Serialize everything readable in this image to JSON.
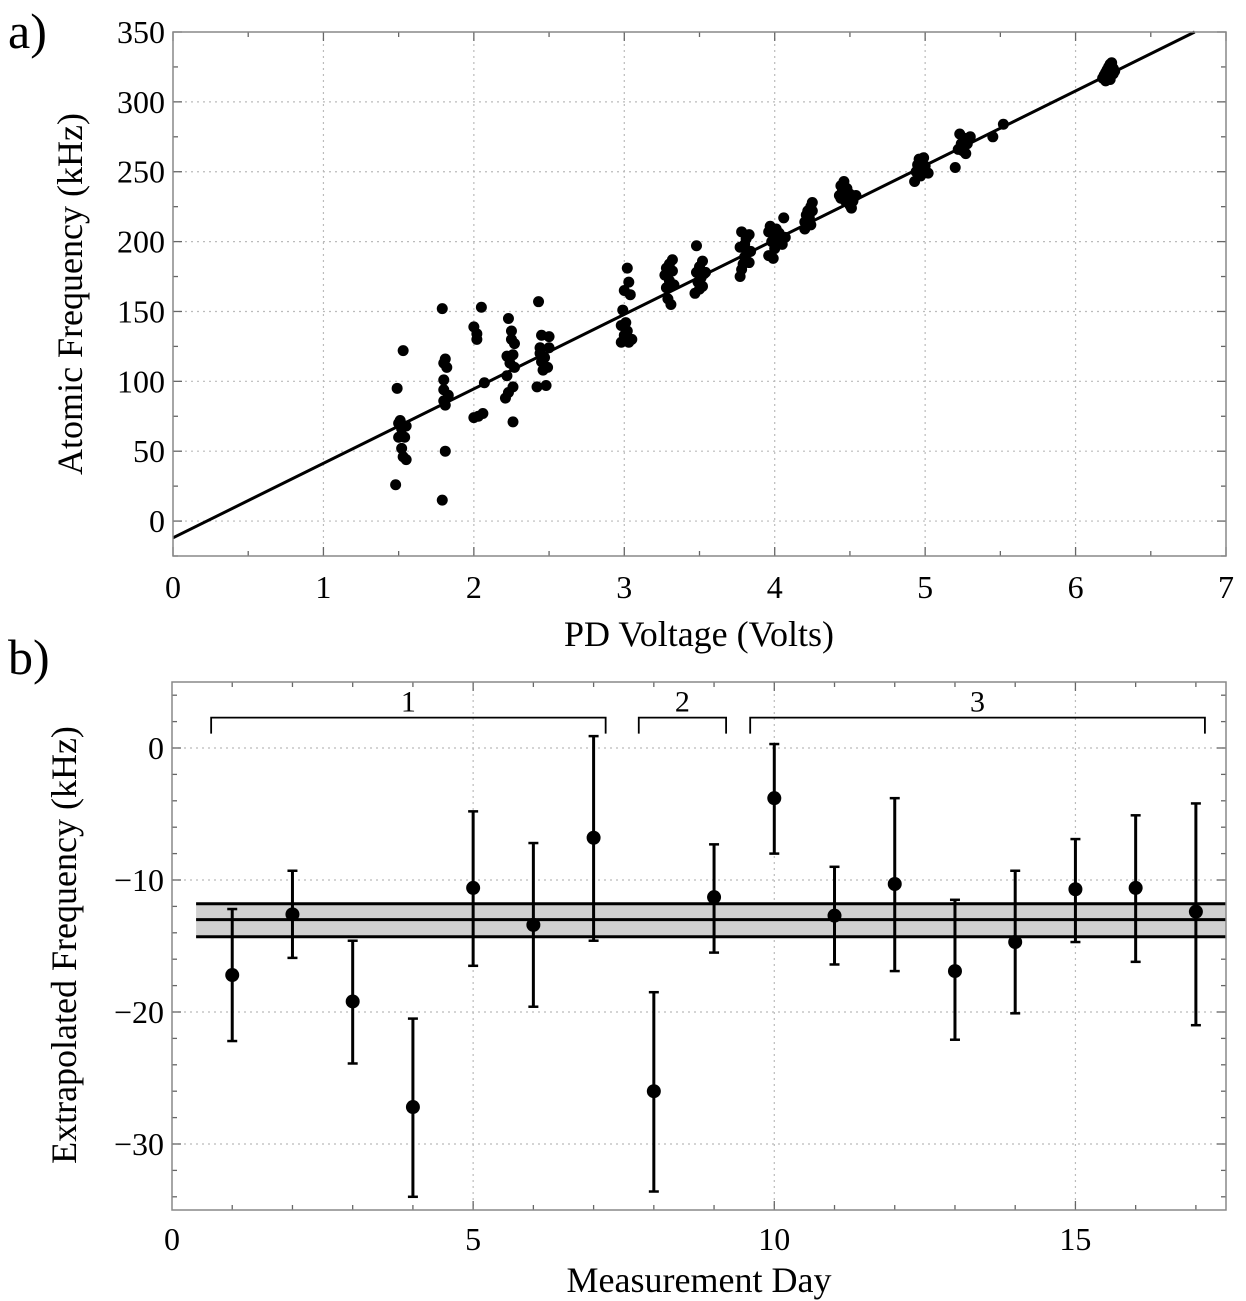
{
  "chart_data": [
    {
      "type": "scatter",
      "panel_label": "a)",
      "title": "",
      "xlabel": "PD Voltage (Volts)",
      "ylabel": "Atomic Frequency (kHz)",
      "xlim": [
        0,
        7
      ],
      "ylim": [
        -25,
        350
      ],
      "x_ticks": [
        0,
        1,
        2,
        3,
        4,
        5,
        6,
        7
      ],
      "y_ticks": [
        0,
        50,
        100,
        150,
        200,
        250,
        300,
        350
      ],
      "grid": true,
      "fit_line": {
        "slope": 53.3,
        "intercept": -12
      },
      "points": [
        [
          1.48,
          26
        ],
        [
          1.49,
          95
        ],
        [
          1.5,
          60
        ],
        [
          1.5,
          70
        ],
        [
          1.51,
          72
        ],
        [
          1.52,
          66
        ],
        [
          1.52,
          52
        ],
        [
          1.53,
          122
        ],
        [
          1.53,
          46
        ],
        [
          1.54,
          60
        ],
        [
          1.55,
          44
        ],
        [
          1.55,
          68
        ],
        [
          1.79,
          15
        ],
        [
          1.79,
          152
        ],
        [
          1.8,
          86
        ],
        [
          1.8,
          101
        ],
        [
          1.8,
          113
        ],
        [
          1.8,
          94
        ],
        [
          1.81,
          116
        ],
        [
          1.81,
          50
        ],
        [
          1.81,
          83
        ],
        [
          1.82,
          110
        ],
        [
          1.83,
          90
        ],
        [
          2.0,
          74
        ],
        [
          2.0,
          139
        ],
        [
          2.02,
          130
        ],
        [
          2.02,
          134
        ],
        [
          2.03,
          75
        ],
        [
          2.05,
          153
        ],
        [
          2.06,
          77
        ],
        [
          2.07,
          99
        ],
        [
          2.21,
          88
        ],
        [
          2.22,
          104
        ],
        [
          2.22,
          118
        ],
        [
          2.23,
          92
        ],
        [
          2.23,
          145
        ],
        [
          2.24,
          113
        ],
        [
          2.25,
          136
        ],
        [
          2.25,
          130
        ],
        [
          2.26,
          119
        ],
        [
          2.26,
          71
        ],
        [
          2.26,
          96
        ],
        [
          2.27,
          110
        ],
        [
          2.27,
          127
        ],
        [
          2.42,
          96
        ],
        [
          2.43,
          157
        ],
        [
          2.44,
          120
        ],
        [
          2.44,
          124
        ],
        [
          2.45,
          114
        ],
        [
          2.45,
          133
        ],
        [
          2.46,
          108
        ],
        [
          2.47,
          117
        ],
        [
          2.48,
          97
        ],
        [
          2.49,
          110
        ],
        [
          2.5,
          124
        ],
        [
          2.5,
          132
        ],
        [
          2.98,
          128
        ],
        [
          2.98,
          140
        ],
        [
          2.99,
          151
        ],
        [
          3.0,
          165
        ],
        [
          3.0,
          133
        ],
        [
          3.01,
          130
        ],
        [
          3.01,
          142
        ],
        [
          3.02,
          181
        ],
        [
          3.02,
          136
        ],
        [
          3.03,
          171
        ],
        [
          3.03,
          128
        ],
        [
          3.04,
          162
        ],
        [
          3.05,
          130
        ],
        [
          3.27,
          176
        ],
        [
          3.28,
          167
        ],
        [
          3.28,
          181
        ],
        [
          3.29,
          159
        ],
        [
          3.3,
          184
        ],
        [
          3.3,
          172
        ],
        [
          3.31,
          155
        ],
        [
          3.32,
          187
        ],
        [
          3.32,
          179
        ],
        [
          3.33,
          169
        ],
        [
          3.47,
          163
        ],
        [
          3.48,
          197
        ],
        [
          3.48,
          178
        ],
        [
          3.49,
          171
        ],
        [
          3.5,
          182
        ],
        [
          3.5,
          166
        ],
        [
          3.51,
          174
        ],
        [
          3.52,
          186
        ],
        [
          3.52,
          168
        ],
        [
          3.53,
          177
        ],
        [
          3.54,
          178
        ],
        [
          3.77,
          175
        ],
        [
          3.77,
          196
        ],
        [
          3.78,
          207
        ],
        [
          3.78,
          180
        ],
        [
          3.79,
          184
        ],
        [
          3.8,
          189
        ],
        [
          3.8,
          198
        ],
        [
          3.81,
          202
        ],
        [
          3.82,
          192
        ],
        [
          3.83,
          185
        ],
        [
          3.83,
          205
        ],
        [
          3.84,
          193
        ],
        [
          3.96,
          207
        ],
        [
          3.96,
          190
        ],
        [
          3.97,
          211
        ],
        [
          3.98,
          200
        ],
        [
          3.99,
          188
        ],
        [
          4.0,
          203
        ],
        [
          4.0,
          195
        ],
        [
          4.01,
          209
        ],
        [
          4.02,
          199
        ],
        [
          4.03,
          206
        ],
        [
          4.04,
          202
        ],
        [
          4.05,
          198
        ],
        [
          4.06,
          217
        ],
        [
          4.07,
          203
        ],
        [
          4.2,
          209
        ],
        [
          4.2,
          214
        ],
        [
          4.21,
          219
        ],
        [
          4.22,
          222
        ],
        [
          4.23,
          217
        ],
        [
          4.24,
          225
        ],
        [
          4.24,
          212
        ],
        [
          4.25,
          228
        ],
        [
          4.25,
          222
        ],
        [
          4.43,
          233
        ],
        [
          4.44,
          240
        ],
        [
          4.44,
          231
        ],
        [
          4.45,
          236
        ],
        [
          4.46,
          243
        ],
        [
          4.47,
          229
        ],
        [
          4.48,
          238
        ],
        [
          4.49,
          232
        ],
        [
          4.5,
          226
        ],
        [
          4.5,
          234
        ],
        [
          4.51,
          224
        ],
        [
          4.52,
          229
        ],
        [
          4.54,
          233
        ],
        [
          4.93,
          243
        ],
        [
          4.94,
          250
        ],
        [
          4.95,
          255
        ],
        [
          4.96,
          259
        ],
        [
          4.97,
          247
        ],
        [
          4.97,
          252
        ],
        [
          4.98,
          256
        ],
        [
          4.99,
          260
        ],
        [
          5.0,
          254
        ],
        [
          5.02,
          249
        ],
        [
          5.2,
          253
        ],
        [
          5.22,
          266
        ],
        [
          5.23,
          277
        ],
        [
          5.24,
          270
        ],
        [
          5.25,
          265
        ],
        [
          5.26,
          274
        ],
        [
          5.27,
          263
        ],
        [
          5.28,
          270
        ],
        [
          5.29,
          273
        ],
        [
          5.3,
          275
        ],
        [
          5.45,
          275
        ],
        [
          5.52,
          284
        ],
        [
          6.18,
          317
        ],
        [
          6.19,
          319
        ],
        [
          6.2,
          321
        ],
        [
          6.2,
          315
        ],
        [
          6.21,
          323
        ],
        [
          6.21,
          318
        ],
        [
          6.22,
          325
        ],
        [
          6.22,
          320
        ],
        [
          6.23,
          327
        ],
        [
          6.23,
          316
        ],
        [
          6.24,
          322
        ],
        [
          6.24,
          328
        ],
        [
          6.25,
          324
        ],
        [
          6.25,
          320
        ],
        [
          6.26,
          322
        ]
      ]
    },
    {
      "type": "errorbar",
      "panel_label": "b)",
      "title": "",
      "xlabel": "Measurement Day",
      "ylabel": "Extrapolated Frequency (kHz)",
      "xlim": [
        0,
        17.5
      ],
      "ylim": [
        -35,
        5
      ],
      "x_ticks": [
        0,
        5,
        10,
        15
      ],
      "y_ticks": [
        0,
        -10,
        -20,
        -30
      ],
      "y_tick_labels": [
        "0",
        "−10",
        "−20",
        "−30"
      ],
      "grid": true,
      "mean_band": {
        "center": -13,
        "lower": -14.3,
        "upper": -11.8,
        "xrange": [
          0.4,
          17.5
        ]
      },
      "points": [
        {
          "x": 1,
          "y": -17.2,
          "lo": -22.2,
          "hi": -12.2
        },
        {
          "x": 2,
          "y": -12.6,
          "lo": -15.9,
          "hi": -9.3
        },
        {
          "x": 3,
          "y": -19.2,
          "lo": -23.9,
          "hi": -14.6
        },
        {
          "x": 4,
          "y": -27.2,
          "lo": -34.0,
          "hi": -20.5
        },
        {
          "x": 5,
          "y": -10.6,
          "lo": -16.5,
          "hi": -4.8
        },
        {
          "x": 6,
          "y": -13.4,
          "lo": -19.6,
          "hi": -7.2
        },
        {
          "x": 7,
          "y": -6.8,
          "lo": -14.6,
          "hi": 0.9
        },
        {
          "x": 8,
          "y": -26.0,
          "lo": -33.6,
          "hi": -18.5
        },
        {
          "x": 9,
          "y": -11.3,
          "lo": -15.5,
          "hi": -7.3
        },
        {
          "x": 10,
          "y": -3.8,
          "lo": -8.0,
          "hi": 0.3
        },
        {
          "x": 11,
          "y": -12.7,
          "lo": -16.4,
          "hi": -9.0
        },
        {
          "x": 12,
          "y": -10.3,
          "lo": -16.9,
          "hi": -3.8
        },
        {
          "x": 13,
          "y": -16.9,
          "lo": -22.1,
          "hi": -11.5
        },
        {
          "x": 14,
          "y": -14.7,
          "lo": -20.1,
          "hi": -9.3
        },
        {
          "x": 15,
          "y": -10.7,
          "lo": -14.7,
          "hi": -6.9
        },
        {
          "x": 16,
          "y": -10.6,
          "lo": -16.2,
          "hi": -5.1
        },
        {
          "x": 17,
          "y": -12.4,
          "lo": -21.0,
          "hi": -4.2
        }
      ],
      "brackets": [
        {
          "label": "1",
          "from": 0.65,
          "to": 7.2
        },
        {
          "label": "2",
          "from": 7.75,
          "to": 9.2
        },
        {
          "label": "3",
          "from": 9.6,
          "to": 17.15
        }
      ],
      "bracket_y": 2.3
    }
  ]
}
